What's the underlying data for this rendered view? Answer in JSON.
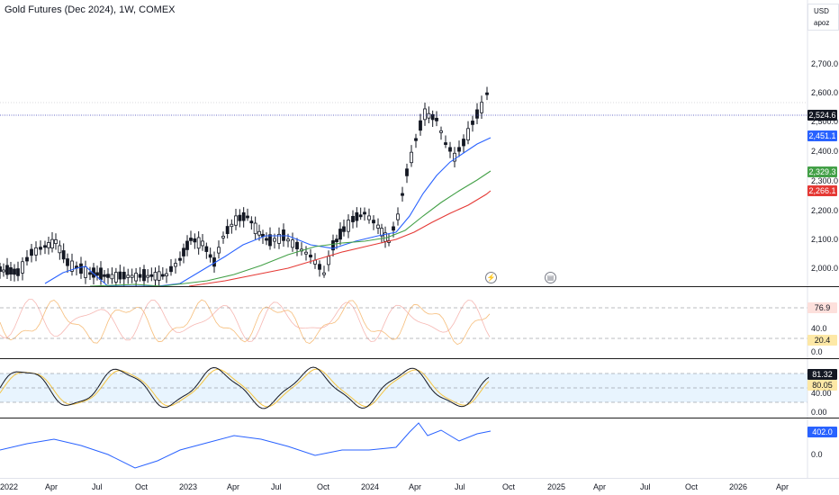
{
  "header": {
    "title": "Gold Futures (Dec 2024), 1W, COMEX"
  },
  "currency": {
    "code": "USD",
    "unit": "apoz"
  },
  "price_axis": [
    "2,700.0",
    "2,600.0",
    "2,500.0",
    "2,400.0",
    "2,300.0",
    "2,200.0",
    "2,100.0",
    "2,000.0"
  ],
  "price_tags": {
    "last": {
      "text": "2,524.6",
      "color": "#131722"
    },
    "ma1": {
      "text": "2,451.1",
      "color": "#2962ff"
    },
    "ma2": {
      "text": "2,329.3",
      "color": "#43a047"
    },
    "ma3": {
      "text": "2,266.1",
      "color": "#e53935"
    }
  },
  "rsi_pane": {
    "levels": [
      "40.0",
      "0.0"
    ],
    "tags": {
      "upper": "76.9",
      "lower": "20.4"
    }
  },
  "stoch_pane": {
    "levels": [
      "40.00",
      "0.00"
    ],
    "tags": {
      "k": "81.32",
      "d": "80.05"
    }
  },
  "obv_pane": {
    "levels": [
      "0.0"
    ],
    "tag": "402.0"
  },
  "time_axis": [
    "2022",
    "Apr",
    "Jul",
    "Oct",
    "2023",
    "Apr",
    "Jul",
    "Oct",
    "2024",
    "Apr",
    "Jul",
    "Oct",
    "2025",
    "Apr",
    "Jul",
    "Oct",
    "2026",
    "Apr"
  ],
  "events": [
    {
      "icon": "lightning-icon"
    },
    {
      "icon": "dividend-icon"
    }
  ],
  "colors": {
    "blue": "#2962ff",
    "green": "#43a047",
    "red": "#e53935",
    "orange": "#f5b66b",
    "pink": "#f4a6a0",
    "grid_dash": "#787b86"
  }
}
